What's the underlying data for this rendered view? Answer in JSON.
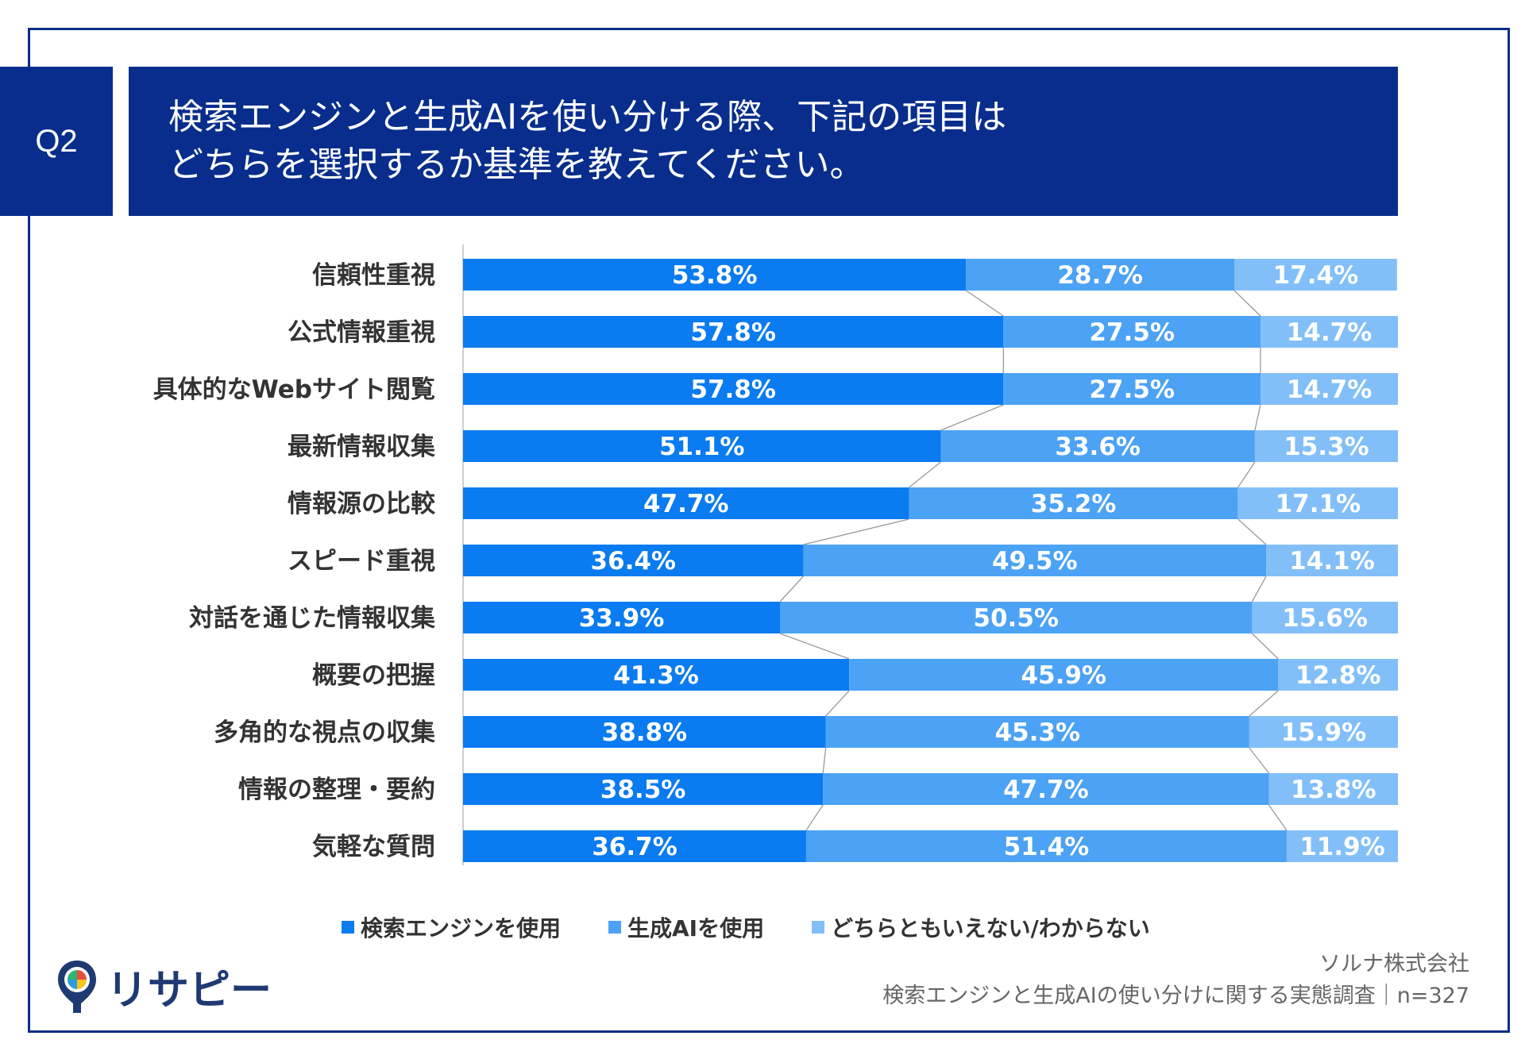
{
  "question_label": "Q2",
  "title": {
    "line1": "検索エンジンと生成AIを使い分ける際、下記の項目は",
    "line2": "どちらを選択するか基準を教えてください。"
  },
  "colors": {
    "navy": "#082d8c",
    "series1": "#0a7bf0",
    "series2": "#4ca2f4",
    "series3": "#82bff8"
  },
  "chart_data": {
    "type": "bar",
    "orientation": "horizontal-stacked-100",
    "categories": [
      "信頼性重視",
      "公式情報重視",
      "具体的なWebサイト閲覧",
      "最新情報収集",
      "情報源の比較",
      "スピード重視",
      "対話を通じた情報収集",
      "概要の把握",
      "多角的な視点の収集",
      "情報の整理・要約",
      "気軽な質問"
    ],
    "series": [
      {
        "name": "検索エンジンを使用",
        "values": [
          53.8,
          57.8,
          57.8,
          51.1,
          47.7,
          36.4,
          33.9,
          41.3,
          38.8,
          38.5,
          36.7
        ]
      },
      {
        "name": "生成AIを使用",
        "values": [
          28.7,
          27.5,
          27.5,
          33.6,
          35.2,
          49.5,
          50.5,
          45.9,
          45.3,
          47.7,
          51.4
        ]
      },
      {
        "name": "どちらともいえない/わからない",
        "values": [
          17.4,
          14.7,
          14.7,
          15.3,
          17.1,
          14.1,
          15.6,
          12.8,
          15.9,
          13.8,
          11.9
        ]
      }
    ],
    "unit": "%",
    "xlim": [
      0,
      100
    ],
    "legend_position": "bottom"
  },
  "legend": [
    {
      "label": "検索エンジンを使用",
      "marker": "■"
    },
    {
      "label": "生成AIを使用",
      "marker": "■"
    },
    {
      "label": "どちらともいえない/わからない",
      "marker": "■"
    }
  ],
  "logo": {
    "text": "リサピー",
    "icon": "map-pin-icon"
  },
  "source": {
    "company": "ソルナ株式会社",
    "survey": "検索エンジンと生成AIの使い分けに関する実態調査｜n=327"
  }
}
